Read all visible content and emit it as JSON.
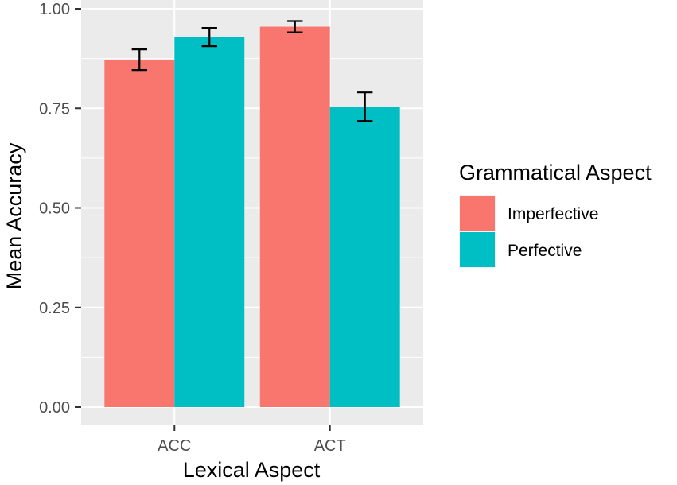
{
  "chart_data": {
    "type": "bar",
    "xlabel": "Lexical Aspect",
    "ylabel": "Mean Accuracy",
    "categories": [
      "ACC",
      "ACT"
    ],
    "ylim": [
      0,
      1
    ],
    "yticks": [
      0,
      0.25,
      0.5,
      0.75,
      1
    ],
    "ytick_labels": [
      "0.00",
      "0.25",
      "0.50",
      "0.75",
      "1.00"
    ],
    "grid": true,
    "legend_title": "Grammatical Aspect",
    "legend_position": "right",
    "series": [
      {
        "name": "Imperfective",
        "color": "#F8766D",
        "values": [
          0.872,
          0.955
        ],
        "error_low": [
          0.846,
          0.941
        ],
        "error_high": [
          0.898,
          0.969
        ]
      },
      {
        "name": "Perfective",
        "color": "#00BFC4",
        "values": [
          0.929,
          0.754
        ],
        "error_low": [
          0.906,
          0.718
        ],
        "error_high": [
          0.952,
          0.79
        ]
      }
    ]
  }
}
